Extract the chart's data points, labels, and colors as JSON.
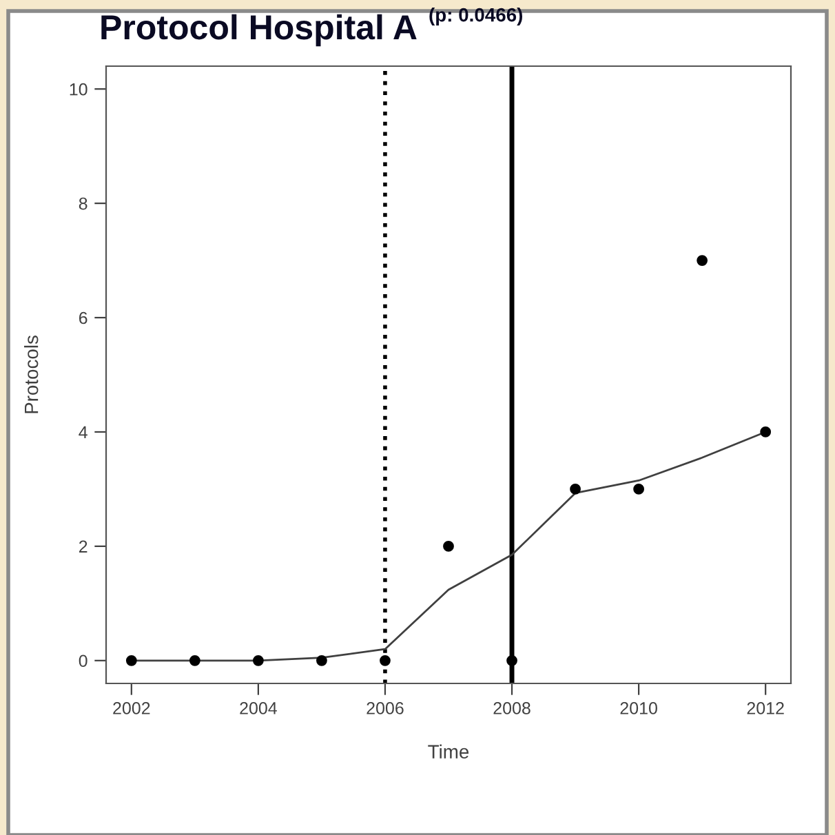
{
  "chart_data": {
    "type": "scatter",
    "title": "Protocol Hospital A",
    "subtitle": "(p: 0.0466)",
    "xlabel": "Time",
    "ylabel": "Protocols",
    "x": [
      2002,
      2003,
      2004,
      2005,
      2006,
      2007,
      2008,
      2009,
      2010,
      2011,
      2012
    ],
    "series": [
      {
        "color": "#000000",
        "marker": "circle",
        "values": [
          0,
          0,
          0,
          0,
          0,
          2,
          0,
          3,
          3,
          7,
          4
        ]
      },
      {
        "type": "line",
        "color": "#404040",
        "marker": "none",
        "line_style": "solid",
        "values": [
          0,
          0,
          0,
          0.05,
          0.2,
          1.24,
          1.85,
          2.93,
          3.15,
          3.55,
          4.0
        ]
      }
    ],
    "xlim": [
      2001.6,
      2012.4
    ],
    "xticks": [
      2002,
      2004,
      2006,
      2008,
      2010,
      2012
    ],
    "ylim": [
      -0.4,
      10.4
    ],
    "yticks": [
      0,
      2,
      4,
      6,
      8,
      10
    ],
    "ref_lines": [
      {
        "axis": "x",
        "value": 2006,
        "line_style": "dotted",
        "color": "#000000"
      },
      {
        "axis": "x",
        "value": 2008,
        "line_style": "solid",
        "color": "#000000"
      }
    ],
    "grid": false,
    "legend": false
  }
}
